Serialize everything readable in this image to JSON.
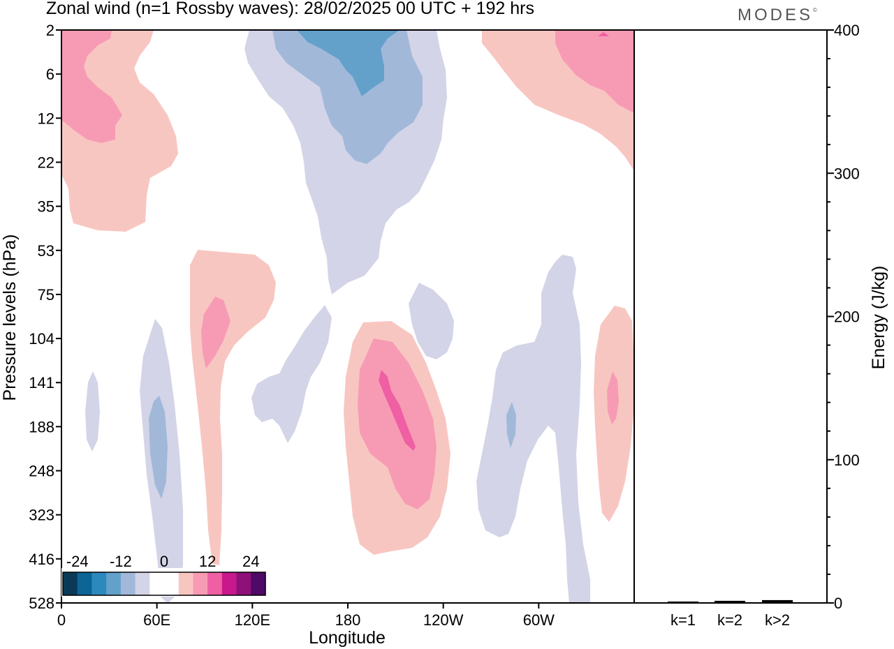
{
  "title": "Zonal wind (n=1 Rossby waves):  28/02/2025  00 UTC  + 192 hrs",
  "brand": "MODES",
  "brand_mark": "©",
  "chart_data": [
    {
      "type": "heatmap",
      "title": "Zonal wind (n=1 Rossby waves):  28/02/2025  00 UTC  + 192 hrs",
      "xlabel": "Longitude",
      "ylabel": "Pressure levels (hPa)",
      "x_ticks": [
        "0",
        "60E",
        "120E",
        "180",
        "120W",
        "60W"
      ],
      "y_ticks": [
        "2",
        "6",
        "12",
        "22",
        "35",
        "53",
        "75",
        "104",
        "141",
        "188",
        "248",
        "323",
        "416",
        "528"
      ],
      "colorbar": {
        "labels": [
          "-24",
          "-12",
          "0",
          "12",
          "24"
        ],
        "colors": [
          "#0b3a57",
          "#0d6596",
          "#2c88bd",
          "#63a1cb",
          "#a2b8d9",
          "#d3d4e7",
          "#ffffff",
          "#ffffff",
          "#f8c6c1",
          "#f79bb4",
          "#ef5fa3",
          "#c8188b",
          "#8e1179",
          "#4e0a66"
        ]
      }
    },
    {
      "type": "bar",
      "ylabel": "Energy (J/kg)",
      "categories": [
        "k=1",
        "k=2",
        "k>2"
      ],
      "values": [
        0.5,
        1,
        1.5
      ],
      "ylim": [
        0,
        400
      ],
      "y_ticks": [
        "0",
        "100",
        "200",
        "300",
        "400"
      ]
    }
  ],
  "colors": {
    "neg1": "#d3d4e7",
    "neg2": "#a2b8d9",
    "neg3": "#63a1cb",
    "pos1": "#f8c6c1",
    "pos2": "#f79bb4",
    "pos3": "#ef5fa3"
  }
}
